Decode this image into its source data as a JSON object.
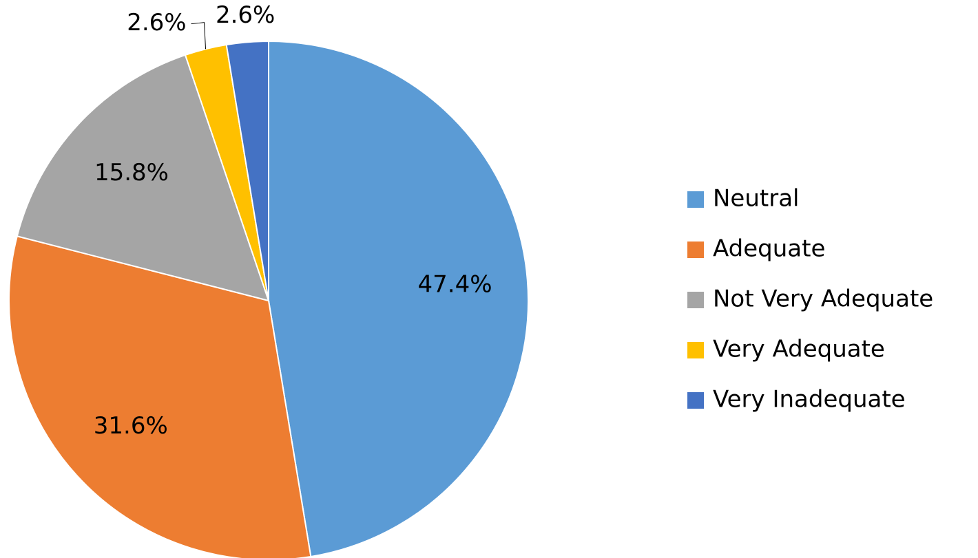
{
  "chart_data": {
    "type": "pie",
    "categories": [
      "Neutral",
      "Adequate",
      "Not Very Adequate",
      "Very Adequate",
      "Very Inadequate"
    ],
    "values": [
      47.4,
      31.6,
      15.8,
      2.6,
      2.6
    ],
    "value_labels": [
      "47.4%",
      "31.6%",
      "15.8%",
      "2.6%",
      "2.6%"
    ],
    "colors": [
      "#5b9bd5",
      "#ed7d31",
      "#a5a5a5",
      "#ffc000",
      "#4472c4"
    ],
    "legend": "right"
  }
}
